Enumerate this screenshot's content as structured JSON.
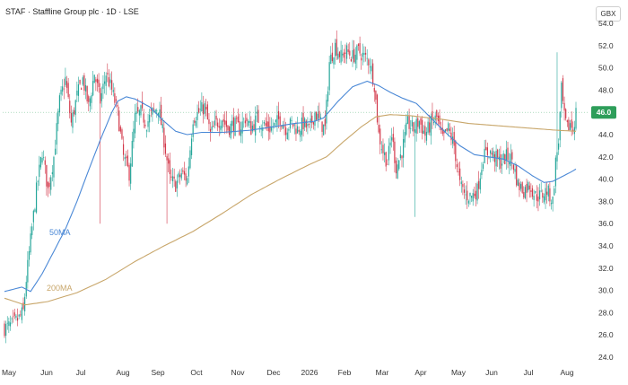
{
  "header": {
    "title": "STAF · Staffline Group plc · 1D · LSE",
    "currency": "GBX"
  },
  "chart_data": {
    "type": "candlestick",
    "ylim": [
      24.0,
      54.0
    ],
    "yticks": [
      "24.0",
      "26.0",
      "28.0",
      "30.0",
      "32.0",
      "34.0",
      "36.0",
      "38.0",
      "40.0",
      "42.0",
      "44.0",
      "46.0",
      "48.0",
      "50.0",
      "52.0",
      "54.0"
    ],
    "xticks": [
      "May",
      "Jun",
      "Jul",
      "Aug",
      "Sep",
      "Oct",
      "Nov",
      "Dec",
      "2026",
      "Feb",
      "Mar",
      "Apr",
      "May",
      "Jun",
      "Jul",
      "Aug"
    ],
    "last_price": "46.0",
    "grid": false,
    "colors": {
      "up": "#26a69a",
      "down": "#d2384a",
      "ma50": "#4a88d6",
      "ma200": "#c8a66a",
      "last": "#2e9e5a"
    },
    "series": [
      {
        "name": "50MA",
        "label": "50MA"
      },
      {
        "name": "200MA",
        "label": "200MA"
      }
    ],
    "anchors": {
      "price": [
        [
          0,
          26.6
        ],
        [
          5,
          26.9
        ],
        [
          10,
          27.5
        ],
        [
          13,
          28.1
        ],
        [
          15,
          31.0
        ],
        [
          18,
          34.5
        ],
        [
          22,
          39.0
        ],
        [
          26,
          42.5
        ],
        [
          30,
          39.0
        ],
        [
          34,
          42.0
        ],
        [
          38,
          47.0
        ],
        [
          42,
          49.0
        ],
        [
          46,
          45.0
        ],
        [
          50,
          47.5
        ],
        [
          54,
          49.0
        ],
        [
          58,
          46.5
        ],
        [
          62,
          49.5
        ],
        [
          66,
          47.0
        ],
        [
          70,
          49.5
        ],
        [
          74,
          48.0
        ],
        [
          78,
          46.0
        ],
        [
          82,
          42.0
        ],
        [
          86,
          40.5
        ],
        [
          90,
          45.5
        ],
        [
          94,
          46.0
        ],
        [
          98,
          45.0
        ],
        [
          102,
          46.0
        ],
        [
          106,
          46.5
        ],
        [
          110,
          43.5
        ],
        [
          114,
          40.0
        ],
        [
          118,
          39.5
        ],
        [
          122,
          40.5
        ],
        [
          126,
          40.0
        ],
        [
          130,
          45.5
        ],
        [
          134,
          46.0
        ],
        [
          138,
          46.5
        ],
        [
          142,
          44.0
        ],
        [
          146,
          45.0
        ],
        [
          150,
          45.5
        ],
        [
          154,
          44.5
        ],
        [
          158,
          45.0
        ],
        [
          162,
          44.5
        ],
        [
          166,
          45.5
        ],
        [
          170,
          44.5
        ],
        [
          174,
          45.5
        ],
        [
          178,
          45.0
        ],
        [
          182,
          44.5
        ],
        [
          186,
          44.8
        ],
        [
          190,
          45.5
        ],
        [
          194,
          44.6
        ],
        [
          198,
          45.0
        ],
        [
          202,
          44.5
        ],
        [
          206,
          45.0
        ],
        [
          210,
          44.4
        ],
        [
          214,
          46.0
        ],
        [
          218,
          45.0
        ],
        [
          221,
          44.5
        ],
        [
          224,
          50.5
        ],
        [
          228,
          52.0
        ],
        [
          232,
          51.0
        ],
        [
          236,
          51.5
        ],
        [
          240,
          51.0
        ],
        [
          244,
          51.5
        ],
        [
          248,
          51.0
        ],
        [
          252,
          50.5
        ],
        [
          255,
          48.5
        ],
        [
          258,
          44.0
        ],
        [
          261,
          42.5
        ],
        [
          264,
          41.5
        ],
        [
          267,
          44.0
        ],
        [
          270,
          41.0
        ],
        [
          274,
          42.5
        ],
        [
          278,
          45.0
        ],
        [
          282,
          44.5
        ],
        [
          286,
          45.2
        ],
        [
          290,
          44.0
        ],
        [
          294,
          45.0
        ],
        [
          298,
          45.5
        ],
        [
          302,
          43.5
        ],
        [
          306,
          44.5
        ],
        [
          310,
          43.0
        ],
        [
          314,
          39.5
        ],
        [
          318,
          38.5
        ],
        [
          322,
          38.5
        ],
        [
          326,
          39.0
        ],
        [
          330,
          42.0
        ],
        [
          334,
          42.5
        ],
        [
          338,
          42.0
        ],
        [
          342,
          41.5
        ],
        [
          346,
          42.0
        ],
        [
          350,
          41.8
        ],
        [
          354,
          39.5
        ],
        [
          358,
          39.0
        ],
        [
          362,
          39.5
        ],
        [
          366,
          38.5
        ],
        [
          370,
          38.5
        ],
        [
          374,
          39.0
        ],
        [
          378,
          38.0
        ],
        [
          380,
          41.5
        ],
        [
          382,
          43.5
        ],
        [
          384,
          48.0
        ],
        [
          386,
          45.5
        ],
        [
          388,
          44.5
        ],
        [
          390,
          45.0
        ],
        [
          392,
          44.5
        ],
        [
          394,
          46.0
        ]
      ],
      "ma50": [
        [
          0,
          29.9
        ],
        [
          12,
          30.3
        ],
        [
          18,
          29.9
        ],
        [
          26,
          31.5
        ],
        [
          34,
          33.5
        ],
        [
          42,
          35.5
        ],
        [
          50,
          38.0
        ],
        [
          58,
          40.8
        ],
        [
          66,
          43.5
        ],
        [
          74,
          46.0
        ],
        [
          78,
          47.0
        ],
        [
          84,
          47.4
        ],
        [
          90,
          47.2
        ],
        [
          100,
          46.5
        ],
        [
          110,
          45.2
        ],
        [
          118,
          44.3
        ],
        [
          126,
          44.0
        ],
        [
          136,
          44.2
        ],
        [
          150,
          44.2
        ],
        [
          170,
          44.4
        ],
        [
          190,
          44.8
        ],
        [
          200,
          45.0
        ],
        [
          214,
          45.2
        ],
        [
          220,
          45.5
        ],
        [
          230,
          47.0
        ],
        [
          240,
          48.3
        ],
        [
          250,
          48.8
        ],
        [
          258,
          48.4
        ],
        [
          266,
          47.8
        ],
        [
          274,
          47.3
        ],
        [
          284,
          46.8
        ],
        [
          294,
          45.5
        ],
        [
          304,
          44.2
        ],
        [
          314,
          43.0
        ],
        [
          324,
          42.2
        ],
        [
          334,
          42.0
        ],
        [
          344,
          41.8
        ],
        [
          354,
          41.2
        ],
        [
          364,
          40.3
        ],
        [
          372,
          39.7
        ],
        [
          378,
          39.8
        ],
        [
          384,
          40.2
        ],
        [
          390,
          40.6
        ],
        [
          394,
          40.9
        ]
      ],
      "ma200": [
        [
          0,
          29.3
        ],
        [
          14,
          28.7
        ],
        [
          30,
          29.0
        ],
        [
          50,
          29.8
        ],
        [
          70,
          31.0
        ],
        [
          90,
          32.6
        ],
        [
          110,
          34.0
        ],
        [
          130,
          35.3
        ],
        [
          150,
          36.9
        ],
        [
          170,
          38.6
        ],
        [
          190,
          40.0
        ],
        [
          210,
          41.3
        ],
        [
          222,
          42.0
        ],
        [
          234,
          43.4
        ],
        [
          246,
          44.7
        ],
        [
          256,
          45.6
        ],
        [
          266,
          45.8
        ],
        [
          280,
          45.7
        ],
        [
          300,
          45.4
        ],
        [
          320,
          45.0
        ],
        [
          340,
          44.8
        ],
        [
          360,
          44.6
        ],
        [
          380,
          44.4
        ],
        [
          394,
          44.3
        ]
      ]
    }
  }
}
